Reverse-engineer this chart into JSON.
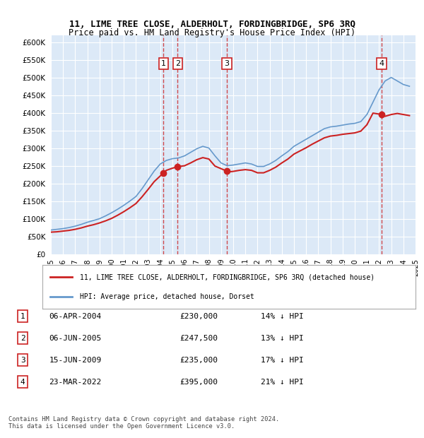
{
  "title": "11, LIME TREE CLOSE, ALDERHOLT, FORDINGBRIDGE, SP6 3RQ",
  "subtitle": "Price paid vs. HM Land Registry's House Price Index (HPI)",
  "ylabel": "",
  "ylim": [
    0,
    620000
  ],
  "yticks": [
    0,
    50000,
    100000,
    150000,
    200000,
    250000,
    300000,
    350000,
    400000,
    450000,
    500000,
    550000,
    600000
  ],
  "background_color": "#dce9f7",
  "plot_bg": "#dce9f7",
  "grid_color": "#ffffff",
  "legend_label_red": "11, LIME TREE CLOSE, ALDERHOLT, FORDINGBRIDGE, SP6 3RQ (detached house)",
  "legend_label_blue": "HPI: Average price, detached house, Dorset",
  "footer": "Contains HM Land Registry data © Crown copyright and database right 2024.\nThis data is licensed under the Open Government Licence v3.0.",
  "purchases": [
    {
      "label": "1",
      "date": "06-APR-2004",
      "price": 230000,
      "pct": "14%",
      "x_year": 2004.27
    },
    {
      "label": "2",
      "date": "06-JUN-2005",
      "price": 247500,
      "pct": "13%",
      "x_year": 2005.43
    },
    {
      "label": "3",
      "date": "15-JUN-2009",
      "price": 235000,
      "pct": "17%",
      "x_year": 2009.46
    },
    {
      "label": "4",
      "date": "23-MAR-2022",
      "price": 395000,
      "pct": "21%",
      "x_year": 2022.22
    }
  ],
  "hpi_x": [
    1995,
    1995.5,
    1996,
    1996.5,
    1997,
    1997.5,
    1998,
    1998.5,
    1999,
    1999.5,
    2000,
    2000.5,
    2001,
    2001.5,
    2002,
    2002.5,
    2003,
    2003.5,
    2004,
    2004.5,
    2005,
    2005.5,
    2006,
    2006.5,
    2007,
    2007.5,
    2008,
    2008.5,
    2009,
    2009.5,
    2010,
    2010.5,
    2011,
    2011.5,
    2012,
    2012.5,
    2013,
    2013.5,
    2014,
    2014.5,
    2015,
    2015.5,
    2016,
    2016.5,
    2017,
    2017.5,
    2018,
    2018.5,
    2019,
    2019.5,
    2020,
    2020.5,
    2021,
    2021.5,
    2022,
    2022.5,
    2023,
    2023.5,
    2024,
    2024.5
  ],
  "hpi_y": [
    68000,
    70000,
    72000,
    75000,
    79000,
    84000,
    90000,
    95000,
    100000,
    108000,
    117000,
    127000,
    138000,
    150000,
    163000,
    185000,
    210000,
    235000,
    255000,
    265000,
    270000,
    272000,
    278000,
    288000,
    298000,
    305000,
    300000,
    278000,
    258000,
    250000,
    252000,
    255000,
    258000,
    255000,
    248000,
    248000,
    255000,
    265000,
    278000,
    290000,
    305000,
    315000,
    325000,
    335000,
    345000,
    355000,
    360000,
    362000,
    365000,
    368000,
    370000,
    375000,
    395000,
    430000,
    465000,
    490000,
    500000,
    490000,
    480000,
    475000
  ],
  "red_x": [
    1995,
    1995.5,
    1996,
    1996.5,
    1997,
    1997.5,
    1998,
    1998.5,
    1999,
    1999.5,
    2000,
    2000.5,
    2001,
    2001.5,
    2002,
    2002.5,
    2003,
    2003.5,
    2004.27,
    2004.5,
    2005,
    2005.43,
    2006,
    2006.5,
    2007,
    2007.5,
    2008,
    2008.5,
    2009.46,
    2009.5,
    2010,
    2010.5,
    2011,
    2011.5,
    2012,
    2012.5,
    2013,
    2013.5,
    2014,
    2014.5,
    2015,
    2015.5,
    2016,
    2016.5,
    2017,
    2017.5,
    2018,
    2018.5,
    2019,
    2019.5,
    2020,
    2020.5,
    2021,
    2021.5,
    2022.22,
    2022.5,
    2023,
    2023.5,
    2024,
    2024.5
  ],
  "red_y": [
    62000,
    63000,
    65000,
    67000,
    70000,
    74000,
    79000,
    83000,
    88000,
    94000,
    101000,
    110000,
    120000,
    131000,
    143000,
    162000,
    183000,
    205000,
    230000,
    237000,
    243000,
    247500,
    250000,
    258000,
    267000,
    273000,
    269000,
    249000,
    235000,
    232000,
    234000,
    237000,
    239000,
    237000,
    230000,
    230000,
    237000,
    246000,
    258000,
    269000,
    283000,
    292000,
    301000,
    311000,
    320000,
    329000,
    334000,
    336000,
    339000,
    341000,
    343000,
    348000,
    366000,
    399000,
    395000,
    390000,
    395000,
    398000,
    395000,
    392000
  ],
  "x_min": 1995,
  "x_max": 2025,
  "xticks": [
    1995,
    1996,
    1997,
    1998,
    1999,
    2000,
    2001,
    2002,
    2003,
    2004,
    2005,
    2006,
    2007,
    2008,
    2009,
    2010,
    2011,
    2012,
    2013,
    2014,
    2015,
    2016,
    2017,
    2018,
    2019,
    2020,
    2021,
    2022,
    2023,
    2024,
    2025
  ]
}
